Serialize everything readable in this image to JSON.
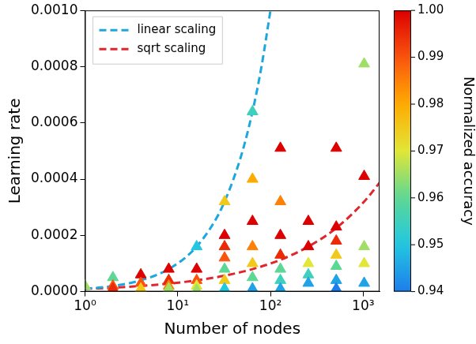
{
  "chart_data": {
    "type": "scatter",
    "x_label": "Number of nodes",
    "y_label": "Learning rate",
    "log": "x",
    "grid": false,
    "legend": "upper left",
    "xlim": [
      1,
      1500
    ],
    "xticks": [
      {
        "value": 1,
        "label": "10⁰"
      },
      {
        "value": 10,
        "label": "10¹"
      },
      {
        "value": 100,
        "label": "10²"
      },
      {
        "value": 1000,
        "label": "10³"
      }
    ],
    "ylim": [
      0,
      0.001
    ],
    "yticks": [
      {
        "value": 0,
        "label": "0.0000"
      },
      {
        "value": 0.0002,
        "label": "0.0002"
      },
      {
        "value": 0.0004,
        "label": "0.0004"
      },
      {
        "value": 0.0006,
        "label": "0.0006"
      },
      {
        "value": 0.0008,
        "label": "0.0008"
      },
      {
        "value": 0.001,
        "label": "0.0010"
      }
    ],
    "colorbar": {
      "label": "Normalized accuracy",
      "range": [
        0.94,
        1.0
      ],
      "ticks": [
        0.94,
        0.95,
        0.96,
        0.97,
        0.98,
        0.99,
        {
          "value": 1.0,
          "label": "1.00"
        }
      ]
    },
    "series": [
      {
        "name": "linear scaling",
        "type": "line",
        "color": "#1ea7dd",
        "line_style": "dashed",
        "x": [
          1,
          1.5,
          2,
          3,
          4,
          6,
          8,
          12,
          16,
          24,
          32,
          48,
          64,
          80,
          100
        ],
        "values": [
          1e-05,
          1.5e-05,
          2e-05,
          3e-05,
          4e-05,
          6e-05,
          8e-05,
          0.00012,
          0.00016,
          0.00024,
          0.00032,
          0.00048,
          0.00064,
          0.0008,
          0.001
        ]
      },
      {
        "name": "sqrt scaling",
        "type": "line",
        "color": "#e0262b",
        "line_style": "dashed",
        "x": [
          1,
          2,
          4,
          8,
          16,
          32,
          64,
          128,
          256,
          512,
          1024,
          1500
        ],
        "values": [
          1e-05,
          1.41e-05,
          2e-05,
          2.83e-05,
          4e-05,
          5.66e-05,
          8e-05,
          0.000113,
          0.00016,
          0.000226,
          0.00032,
          0.000387
        ]
      },
      {
        "type": "scatter",
        "marker": "triangle",
        "x": [
          1,
          2,
          2,
          2,
          4,
          4,
          4,
          8,
          8,
          8,
          8,
          16,
          16,
          16,
          16,
          16,
          32,
          32,
          32,
          32,
          32,
          32,
          32,
          64,
          64,
          64,
          64,
          64,
          64,
          64,
          128,
          128,
          128,
          128,
          128,
          128,
          128,
          256,
          256,
          256,
          256,
          256,
          512,
          512,
          512,
          512,
          512,
          512,
          512,
          1024,
          1024,
          1024,
          1024,
          1024
        ],
        "values": [
          2e-05,
          5e-05,
          2e-05,
          1e-05,
          6e-05,
          3e-05,
          1e-05,
          8e-05,
          4e-05,
          2e-05,
          1e-05,
          0.00016,
          8e-05,
          4e-05,
          2e-05,
          5e-06,
          0.00032,
          0.0002,
          0.00016,
          0.00012,
          8e-05,
          4e-05,
          1e-05,
          0.00064,
          0.0004,
          0.00025,
          0.00016,
          0.0001,
          5e-05,
          1e-05,
          0.00051,
          0.00032,
          0.0002,
          0.00013,
          8e-05,
          4e-05,
          1e-05,
          0.00025,
          0.00016,
          0.0001,
          6e-05,
          3e-05,
          0.00051,
          0.00023,
          0.00018,
          0.00013,
          9e-05,
          4e-05,
          1e-05,
          0.00081,
          0.00041,
          0.00016,
          0.0001,
          3e-05
        ],
        "accuracy": [
          0.965,
          0.96,
          0.99,
          0.995,
          1.0,
          0.99,
          0.975,
          1.0,
          0.995,
          0.985,
          0.965,
          0.95,
          1.0,
          0.99,
          0.97,
          0.965,
          0.975,
          1.0,
          0.995,
          0.99,
          0.96,
          0.975,
          0.95,
          0.955,
          0.98,
          1.0,
          0.985,
          0.975,
          0.96,
          0.945,
          1.0,
          0.985,
          1.0,
          0.995,
          0.96,
          0.955,
          0.945,
          1.0,
          1.0,
          0.97,
          0.955,
          0.945,
          1.0,
          1.0,
          0.995,
          0.975,
          0.96,
          0.945,
          0.94,
          0.965,
          1.0,
          0.965,
          0.97,
          0.945
        ]
      }
    ]
  }
}
